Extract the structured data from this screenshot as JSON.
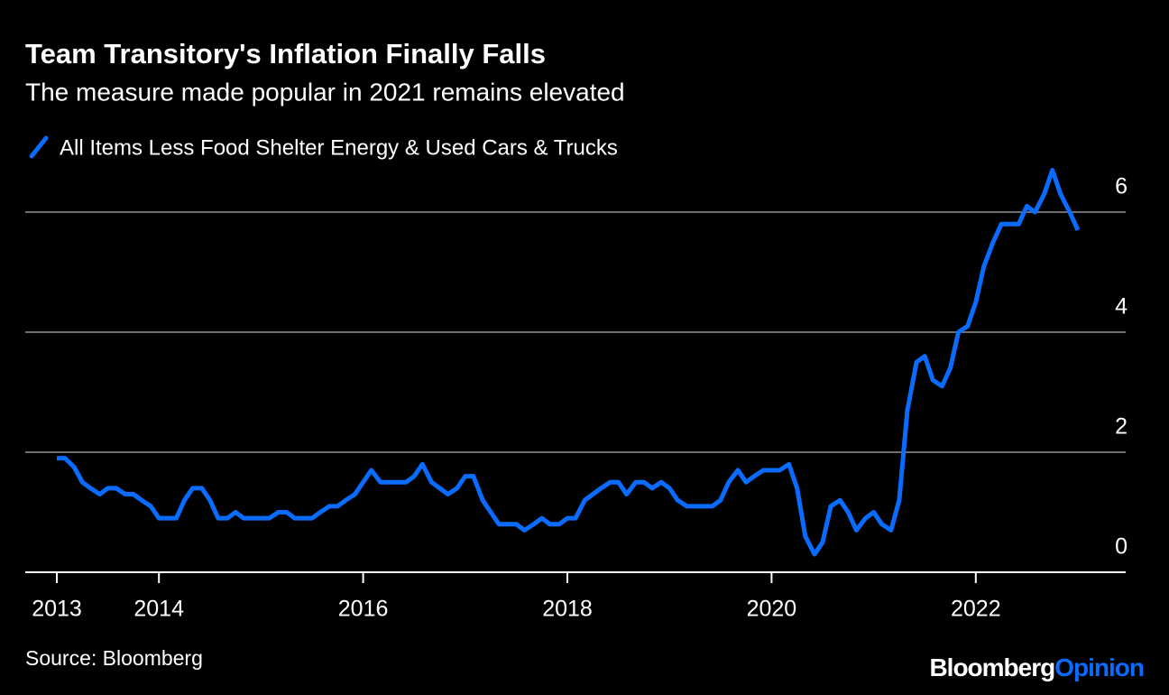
{
  "chart_data": {
    "type": "line",
    "title": "Team Transitory's Inflation Finally Falls",
    "subtitle": "The measure made popular in 2021 remains elevated",
    "source": "Source: Bloomberg",
    "brand": "Bloomberg",
    "brand_suffix": "Opinion",
    "xlim": [
      2013,
      2023
    ],
    "xticks": [
      2013,
      2014,
      2016,
      2018,
      2020,
      2022
    ],
    "ylim": [
      0,
      7
    ],
    "yticks": [
      0,
      2,
      4,
      6
    ],
    "grid": true,
    "x": [
      2013.0,
      2013.08,
      2013.17,
      2013.25,
      2013.33,
      2013.42,
      2013.5,
      2013.58,
      2013.67,
      2013.75,
      2013.83,
      2013.92,
      2014.0,
      2014.08,
      2014.17,
      2014.25,
      2014.33,
      2014.42,
      2014.5,
      2014.58,
      2014.67,
      2014.75,
      2014.83,
      2014.92,
      2015.0,
      2015.08,
      2015.17,
      2015.25,
      2015.33,
      2015.42,
      2015.5,
      2015.58,
      2015.67,
      2015.75,
      2015.83,
      2015.92,
      2016.0,
      2016.08,
      2016.17,
      2016.25,
      2016.33,
      2016.42,
      2016.5,
      2016.58,
      2016.67,
      2016.75,
      2016.83,
      2016.92,
      2017.0,
      2017.08,
      2017.17,
      2017.25,
      2017.33,
      2017.42,
      2017.5,
      2017.58,
      2017.67,
      2017.75,
      2017.83,
      2017.92,
      2018.0,
      2018.08,
      2018.17,
      2018.25,
      2018.33,
      2018.42,
      2018.5,
      2018.58,
      2018.67,
      2018.75,
      2018.83,
      2018.92,
      2019.0,
      2019.08,
      2019.17,
      2019.25,
      2019.33,
      2019.42,
      2019.5,
      2019.58,
      2019.67,
      2019.75,
      2019.83,
      2019.92,
      2020.0,
      2020.08,
      2020.17,
      2020.25,
      2020.33,
      2020.42,
      2020.5,
      2020.58,
      2020.67,
      2020.75,
      2020.83,
      2020.92,
      2021.0,
      2021.08,
      2021.17,
      2021.25,
      2021.33,
      2021.42,
      2021.5,
      2021.58,
      2021.67,
      2021.75,
      2021.83,
      2021.92,
      2022.0,
      2022.08,
      2022.17,
      2022.25,
      2022.33,
      2022.42,
      2022.5,
      2022.58,
      2022.67,
      2022.75,
      2022.83,
      2022.92,
      2023.0
    ],
    "series": [
      {
        "name": "All Items Less Food Shelter Energy & Used Cars & Trucks",
        "color": "#0a6cff",
        "values": [
          1.9,
          1.9,
          1.75,
          1.5,
          1.4,
          1.3,
          1.4,
          1.4,
          1.3,
          1.3,
          1.2,
          1.1,
          0.9,
          0.9,
          0.9,
          1.2,
          1.4,
          1.4,
          1.2,
          0.9,
          0.9,
          1.0,
          0.9,
          0.9,
          0.9,
          0.9,
          1.0,
          1.0,
          0.9,
          0.9,
          0.9,
          1.0,
          1.1,
          1.1,
          1.2,
          1.3,
          1.5,
          1.7,
          1.5,
          1.5,
          1.5,
          1.5,
          1.6,
          1.8,
          1.5,
          1.4,
          1.3,
          1.4,
          1.6,
          1.6,
          1.2,
          1.0,
          0.8,
          0.8,
          0.8,
          0.7,
          0.8,
          0.9,
          0.8,
          0.8,
          0.9,
          0.9,
          1.2,
          1.3,
          1.4,
          1.5,
          1.5,
          1.3,
          1.5,
          1.5,
          1.4,
          1.5,
          1.4,
          1.2,
          1.1,
          1.1,
          1.1,
          1.1,
          1.2,
          1.5,
          1.7,
          1.5,
          1.6,
          1.7,
          1.7,
          1.7,
          1.8,
          1.4,
          0.6,
          0.3,
          0.5,
          1.1,
          1.2,
          1.0,
          0.7,
          0.9,
          1.0,
          0.8,
          0.7,
          1.2,
          2.7,
          3.5,
          3.6,
          3.2,
          3.1,
          3.4,
          4.0,
          4.1,
          4.5,
          5.1,
          5.5,
          5.8,
          5.8,
          5.8,
          6.1,
          6.0,
          6.3,
          6.7,
          6.3,
          6.0,
          5.7
        ]
      }
    ]
  }
}
